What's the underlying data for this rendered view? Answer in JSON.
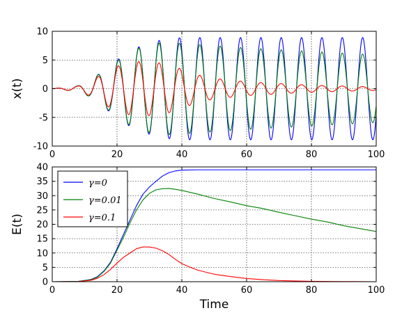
{
  "chart_data": [
    {
      "type": "line",
      "title": "",
      "xlabel": "",
      "ylabel": "x(t)",
      "xlim": [
        0,
        100
      ],
      "ylim": [
        -10,
        10
      ],
      "xticks": [
        0,
        20,
        40,
        60,
        80,
        100
      ],
      "yticks": [
        -10,
        -5,
        0,
        5,
        10
      ],
      "grid": true,
      "series": [
        {
          "name": "γ=0",
          "color": "#0000ff",
          "model": "oscillation",
          "omega": 1.0,
          "envelope": [
            [
              0,
              0
            ],
            [
              8,
              0.5
            ],
            [
              12,
              1.5
            ],
            [
              16,
              3.3
            ],
            [
              20,
              5.0
            ],
            [
              24,
              6.6
            ],
            [
              28,
              7.6
            ],
            [
              32,
              8.3
            ],
            [
              36,
              8.7
            ],
            [
              40,
              8.9
            ],
            [
              100,
              8.9
            ]
          ]
        },
        {
          "name": "γ=0.01",
          "color": "#008000",
          "model": "oscillation",
          "omega": 1.0,
          "envelope": [
            [
              0,
              0
            ],
            [
              8,
              0.5
            ],
            [
              12,
              1.5
            ],
            [
              16,
              3.2
            ],
            [
              20,
              4.8
            ],
            [
              24,
              6.4
            ],
            [
              28,
              7.4
            ],
            [
              32,
              7.9
            ],
            [
              36,
              8.0
            ],
            [
              40,
              7.9
            ],
            [
              50,
              7.5
            ],
            [
              60,
              7.1
            ],
            [
              70,
              6.8
            ],
            [
              80,
              6.5
            ],
            [
              90,
              6.2
            ],
            [
              100,
              5.9
            ]
          ]
        },
        {
          "name": "γ=0.1",
          "color": "#ff0000",
          "model": "oscillation",
          "omega": 1.0,
          "envelope": [
            [
              0,
              0
            ],
            [
              8,
              0.45
            ],
            [
              12,
              1.3
            ],
            [
              16,
              2.8
            ],
            [
              20,
              3.9
            ],
            [
              24,
              4.6
            ],
            [
              28,
              4.8
            ],
            [
              32,
              4.6
            ],
            [
              36,
              4.2
            ],
            [
              40,
              3.4
            ],
            [
              45,
              2.4
            ],
            [
              50,
              1.8
            ],
            [
              60,
              1.2
            ],
            [
              70,
              0.9
            ],
            [
              80,
              0.6
            ],
            [
              90,
              0.45
            ],
            [
              100,
              0.3
            ]
          ]
        }
      ]
    },
    {
      "type": "line",
      "title": "",
      "xlabel": "Time",
      "ylabel": "E(t)",
      "xlim": [
        0,
        100
      ],
      "ylim": [
        0,
        40
      ],
      "xticks": [
        0,
        20,
        40,
        60,
        80,
        100
      ],
      "yticks": [
        0,
        5,
        10,
        15,
        20,
        25,
        30,
        35,
        40
      ],
      "grid": true,
      "legend": "top-left",
      "series": [
        {
          "name": "γ=0",
          "color": "#0000ff",
          "points": [
            [
              0,
              0
            ],
            [
              8,
              0.1
            ],
            [
              12,
              0.8
            ],
            [
              14,
              1.8
            ],
            [
              16,
              3.8
            ],
            [
              18,
              6.8
            ],
            [
              20,
              11.5
            ],
            [
              22,
              16.5
            ],
            [
              24,
              21.5
            ],
            [
              26,
              26.5
            ],
            [
              28,
              30.5
            ],
            [
              30,
              33.0
            ],
            [
              32,
              35.0
            ],
            [
              34,
              36.8
            ],
            [
              36,
              38.0
            ],
            [
              38,
              38.6
            ],
            [
              40,
              38.9
            ],
            [
              45,
              39.0
            ],
            [
              100,
              39.0
            ]
          ]
        },
        {
          "name": "γ=0.01",
          "color": "#008000",
          "points": [
            [
              0,
              0
            ],
            [
              8,
              0.1
            ],
            [
              12,
              0.7
            ],
            [
              14,
              1.6
            ],
            [
              16,
              3.6
            ],
            [
              18,
              6.5
            ],
            [
              20,
              11.0
            ],
            [
              22,
              15.5
            ],
            [
              24,
              20.5
            ],
            [
              26,
              25.0
            ],
            [
              28,
              28.5
            ],
            [
              30,
              30.8
            ],
            [
              32,
              32.0
            ],
            [
              34,
              32.4
            ],
            [
              36,
              32.5
            ],
            [
              38,
              32.2
            ],
            [
              40,
              31.8
            ],
            [
              45,
              30.5
            ],
            [
              50,
              29.0
            ],
            [
              55,
              27.8
            ],
            [
              60,
              26.5
            ],
            [
              65,
              25.5
            ],
            [
              70,
              24.2
            ],
            [
              75,
              23.0
            ],
            [
              80,
              21.8
            ],
            [
              85,
              20.8
            ],
            [
              90,
              19.5
            ],
            [
              95,
              18.5
            ],
            [
              100,
              17.5
            ]
          ]
        },
        {
          "name": "γ=0.1",
          "color": "#ff0000",
          "points": [
            [
              0,
              0
            ],
            [
              8,
              0.05
            ],
            [
              12,
              0.5
            ],
            [
              14,
              1.2
            ],
            [
              16,
              2.5
            ],
            [
              18,
              4.3
            ],
            [
              20,
              6.5
            ],
            [
              22,
              8.5
            ],
            [
              24,
              10.0
            ],
            [
              26,
              11.5
            ],
            [
              28,
              12.1
            ],
            [
              30,
              12.1
            ],
            [
              32,
              11.7
            ],
            [
              34,
              10.8
            ],
            [
              36,
              9.5
            ],
            [
              38,
              7.8
            ],
            [
              40,
              6.3
            ],
            [
              42,
              5.3
            ],
            [
              45,
              4.0
            ],
            [
              50,
              2.6
            ],
            [
              55,
              1.8
            ],
            [
              60,
              1.1
            ],
            [
              65,
              0.7
            ],
            [
              70,
              0.4
            ],
            [
              75,
              0.25
            ],
            [
              80,
              0.15
            ],
            [
              90,
              0.05
            ],
            [
              100,
              0.0
            ]
          ]
        }
      ]
    }
  ]
}
